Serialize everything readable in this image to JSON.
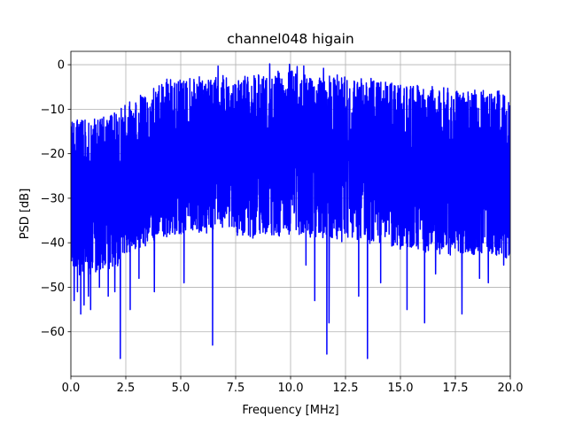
{
  "chart_data": {
    "type": "line",
    "title": "channel048 higain",
    "xlabel": "Frequency [MHz]",
    "ylabel": "PSD [dB]",
    "xlim": [
      0,
      20
    ],
    "ylim": [
      -70,
      3
    ],
    "grid": true,
    "xticks": [
      0,
      2.5,
      5,
      7.5,
      10,
      12.5,
      15,
      17.5,
      20
    ],
    "xtick_labels": [
      "0.0",
      "2.5",
      "5.0",
      "7.5",
      "10.0",
      "12.5",
      "15.0",
      "17.5",
      "20.0"
    ],
    "yticks": [
      0,
      -10,
      -20,
      -30,
      -40,
      -50,
      -60
    ],
    "ytick_labels": [
      "0",
      "−10",
      "−20",
      "−30",
      "−40",
      "−50",
      "−60"
    ],
    "series": [
      {
        "color": "#0000ff",
        "upper_envelope": {
          "x": [
            0,
            0.5,
            1,
            1.5,
            2,
            2.5,
            3,
            3.5,
            4,
            4.5,
            5,
            6,
            7,
            8,
            9,
            10,
            11,
            12,
            13,
            14,
            15,
            16,
            17,
            18,
            19,
            20
          ],
          "y": [
            -12,
            -11,
            -12,
            -11,
            -10,
            -8,
            -7,
            -5.5,
            -4,
            -3,
            -3,
            -2.5,
            -2,
            -2,
            -1.5,
            -1,
            -2,
            -2,
            -2.5,
            -3,
            -4,
            -4.5,
            -5,
            -5.5,
            -5.5,
            -6
          ]
        },
        "lower_envelope": {
          "x": [
            0,
            0.5,
            1,
            1.5,
            2,
            2.5,
            3,
            3.5,
            4,
            5,
            6,
            7,
            8,
            9,
            10,
            11,
            12,
            13,
            14,
            15,
            16,
            17,
            18,
            19,
            20
          ],
          "y": [
            -45,
            -48,
            -47,
            -47,
            -46,
            -44,
            -42,
            -41,
            -39,
            -39,
            -38,
            -38,
            -39,
            -39,
            -39,
            -39,
            -40,
            -40,
            -41,
            -42,
            -42,
            -43,
            -43,
            -43,
            -44
          ]
        },
        "dips": [
          {
            "x": 0.15,
            "y": -53
          },
          {
            "x": 0.3,
            "y": -51
          },
          {
            "x": 0.45,
            "y": -56
          },
          {
            "x": 0.6,
            "y": -54
          },
          {
            "x": 0.8,
            "y": -52
          },
          {
            "x": 0.9,
            "y": -55
          },
          {
            "x": 1.3,
            "y": -50
          },
          {
            "x": 1.7,
            "y": -52
          },
          {
            "x": 2.0,
            "y": -51
          },
          {
            "x": 2.25,
            "y": -66
          },
          {
            "x": 2.7,
            "y": -55
          },
          {
            "x": 3.1,
            "y": -48
          },
          {
            "x": 3.8,
            "y": -51
          },
          {
            "x": 5.15,
            "y": -49
          },
          {
            "x": 6.45,
            "y": -63
          },
          {
            "x": 10.7,
            "y": -45
          },
          {
            "x": 11.1,
            "y": -53
          },
          {
            "x": 11.65,
            "y": -65
          },
          {
            "x": 11.75,
            "y": -58
          },
          {
            "x": 13.1,
            "y": -52
          },
          {
            "x": 13.5,
            "y": -66
          },
          {
            "x": 14.1,
            "y": -49
          },
          {
            "x": 15.3,
            "y": -55
          },
          {
            "x": 16.1,
            "y": -58
          },
          {
            "x": 16.6,
            "y": -47
          },
          {
            "x": 17.8,
            "y": -56
          },
          {
            "x": 18.6,
            "y": -48
          },
          {
            "x": 19.0,
            "y": -49
          },
          {
            "x": 19.7,
            "y": -45
          }
        ],
        "peaks": [
          {
            "x": 6.7,
            "y": -0.3
          },
          {
            "x": 9.05,
            "y": 0.2
          },
          {
            "x": 9.95,
            "y": 0.1
          },
          {
            "x": 10.3,
            "y": -0.4
          },
          {
            "x": 10.6,
            "y": -0.3
          },
          {
            "x": 11.5,
            "y": -0.8
          }
        ]
      }
    ]
  }
}
